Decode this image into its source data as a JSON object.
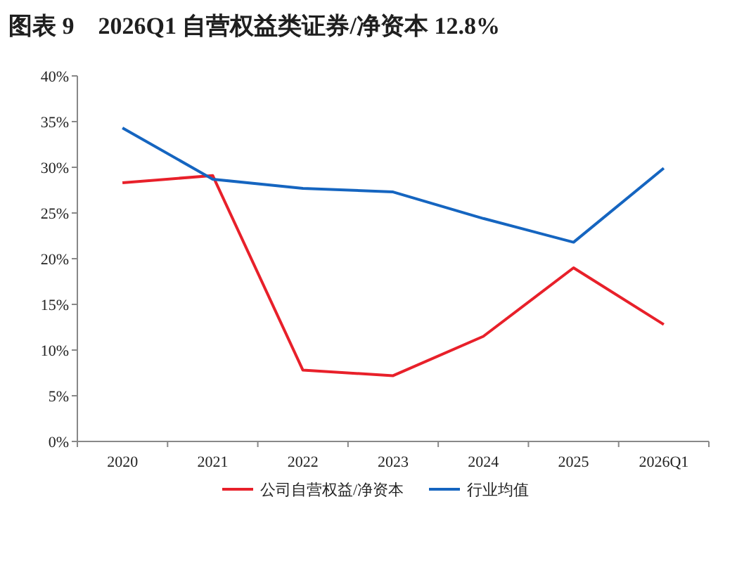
{
  "chart_data": {
    "type": "line",
    "title": "图表 9　2026Q1 自营权益类证券/净资本 12.8%",
    "categories": [
      "2020",
      "2021",
      "2022",
      "2023",
      "2024",
      "2025",
      "2026Q1"
    ],
    "series": [
      {
        "name": "公司自营权益/净资本",
        "color": "#e8202a",
        "values": [
          28.3,
          29.1,
          7.8,
          7.2,
          11.5,
          19.0,
          12.8
        ]
      },
      {
        "name": "行业均值",
        "color": "#1565c0",
        "values": [
          34.3,
          28.7,
          27.7,
          27.3,
          24.4,
          21.8,
          29.9
        ]
      }
    ],
    "ylim": [
      0,
      40
    ],
    "yticks": [
      {
        "value": 0,
        "label": "0%"
      },
      {
        "value": 5,
        "label": "5%"
      },
      {
        "value": 10,
        "label": "10%"
      },
      {
        "value": 15,
        "label": "15%"
      },
      {
        "value": 20,
        "label": "20%"
      },
      {
        "value": 25,
        "label": "25%"
      },
      {
        "value": 30,
        "label": "30%"
      },
      {
        "value": 35,
        "label": "35%"
      },
      {
        "value": 40,
        "label": "40%"
      }
    ],
    "legend": "bottom"
  }
}
